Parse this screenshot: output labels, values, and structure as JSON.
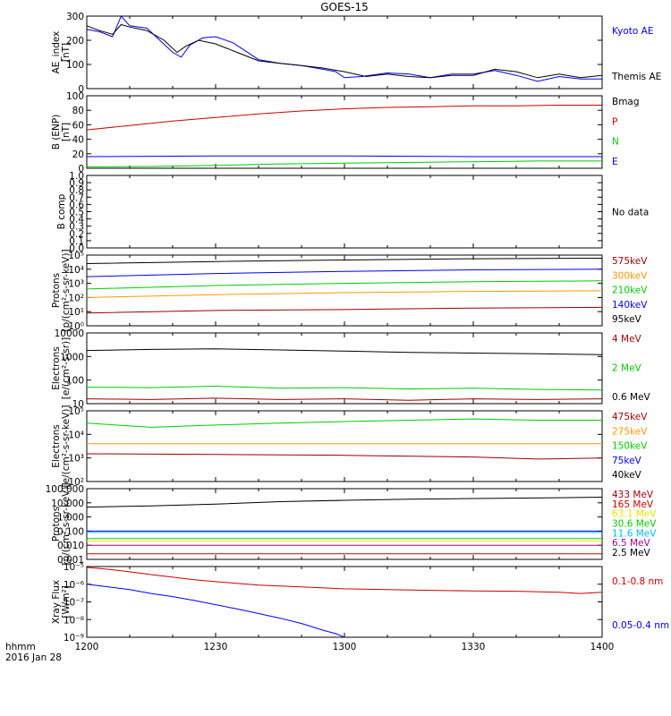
{
  "title": "GOES-15",
  "date_label": "2016 Jan 28",
  "time_axis_label": "hhmm",
  "x_ticks": [
    "1200",
    "1230",
    "1300",
    "1330",
    "1400"
  ],
  "colors": {
    "black": "#000000",
    "red": "#cc0000",
    "blue": "#0000ee",
    "green": "#00cc00",
    "orange": "#ff9900",
    "yellow": "#e6e600",
    "cyan": "#00bbff",
    "darkred": "#990000",
    "purple": "#aa0088"
  },
  "chart_data": [
    {
      "type": "line",
      "ylabel": [
        "AE_index",
        "[nT]"
      ],
      "ylim": [
        0,
        300
      ],
      "y_ticks": [
        "0",
        "100",
        "200",
        "300"
      ],
      "series": [
        {
          "name": "Kyoto AE",
          "color": "blue",
          "x": [
            "1200",
            "1203",
            "1206",
            "1208",
            "1210",
            "1214",
            "1220",
            "1222",
            "1224",
            "1227",
            "1230",
            "1234",
            "1237",
            "1240",
            "1245",
            "1250",
            "1255",
            "1258",
            "1300",
            "1304",
            "1310",
            "1315",
            "1320",
            "1325",
            "1330",
            "1335",
            "1340",
            "1345",
            "1350",
            "1355",
            "1400"
          ],
          "values": [
            245,
            235,
            215,
            300,
            260,
            250,
            150,
            130,
            180,
            210,
            215,
            190,
            155,
            120,
            105,
            95,
            80,
            70,
            45,
            50,
            65,
            60,
            45,
            60,
            60,
            75,
            55,
            30,
            50,
            40,
            40
          ]
        },
        {
          "name": "Themis AE",
          "color": "black",
          "x": [
            "1200",
            "1203",
            "1206",
            "1208",
            "1210",
            "1214",
            "1218",
            "1221",
            "1223",
            "1226",
            "1230",
            "1235",
            "1240",
            "1245",
            "1250",
            "1255",
            "1300",
            "1305",
            "1310",
            "1315",
            "1320",
            "1325",
            "1330",
            "1335",
            "1340",
            "1345",
            "1350",
            "1355",
            "1400"
          ],
          "values": [
            260,
            240,
            225,
            265,
            255,
            240,
            200,
            150,
            175,
            200,
            185,
            150,
            115,
            105,
            95,
            85,
            70,
            50,
            60,
            50,
            45,
            55,
            55,
            80,
            70,
            45,
            60,
            45,
            55
          ]
        }
      ]
    },
    {
      "type": "line",
      "ylabel": [
        "B (ENP)",
        "[nT]"
      ],
      "ylim": [
        0,
        100
      ],
      "y_ticks": [
        "0",
        "20",
        "40",
        "60",
        "80",
        "100"
      ],
      "legend_extra": "Bmag",
      "series": [
        {
          "name": "P",
          "color": "red",
          "x": [
            "1200",
            "1210",
            "1220",
            "1230",
            "1240",
            "1250",
            "1300",
            "1310",
            "1320",
            "1330",
            "1340",
            "1350",
            "1400"
          ],
          "values": [
            53,
            59,
            65,
            70,
            75,
            79,
            82,
            84,
            85,
            86,
            86,
            87,
            87
          ]
        },
        {
          "name": "N",
          "color": "green",
          "x": [
            "1200",
            "1215",
            "1230",
            "1245",
            "1300",
            "1315",
            "1330",
            "1345",
            "1400"
          ],
          "values": [
            2,
            2.5,
            4,
            6,
            7,
            8,
            9,
            10,
            10
          ]
        },
        {
          "name": "E",
          "color": "blue",
          "x": [
            "1200",
            "1230",
            "1300",
            "1330",
            "1400"
          ],
          "values": [
            16,
            17,
            17,
            16,
            16
          ]
        }
      ]
    },
    {
      "type": "line",
      "ylabel": [
        "B comp"
      ],
      "ylim": [
        0,
        1
      ],
      "y_ticks": [
        "0.0",
        "0.1",
        "0.2",
        "0.3",
        "0.4",
        "0.5",
        "0.6",
        "0.7",
        "0.8",
        "0.9",
        "1.0"
      ],
      "legend_extra": "No data",
      "series": []
    },
    {
      "type": "line",
      "log": true,
      "ylabel": [
        "Protons",
        "[p/(cm²-s-sr-keV)]"
      ],
      "ylim": [
        1,
        100000
      ],
      "y_ticks": [
        "10⁰",
        "10¹",
        "10²",
        "10³",
        "10⁴",
        "10⁵"
      ],
      "series": [
        {
          "name": "575keV",
          "color": "darkred",
          "x": [
            "1200",
            "1230",
            "1300",
            "1330",
            "1400"
          ],
          "values": [
            8,
            12,
            14,
            18,
            20
          ]
        },
        {
          "name": "300keV",
          "color": "orange",
          "x": [
            "1200",
            "1230",
            "1300",
            "1330",
            "1400"
          ],
          "values": [
            100,
            160,
            220,
            270,
            300
          ]
        },
        {
          "name": "210keV",
          "color": "green",
          "x": [
            "1200",
            "1230",
            "1300",
            "1330",
            "1400"
          ],
          "values": [
            400,
            700,
            1000,
            1300,
            1500
          ]
        },
        {
          "name": "140keV",
          "color": "blue",
          "x": [
            "1200",
            "1230",
            "1300",
            "1330",
            "1400"
          ],
          "values": [
            3000,
            5000,
            7000,
            9000,
            10000
          ]
        },
        {
          "name": "95keV",
          "color": "black",
          "x": [
            "1200",
            "1230",
            "1300",
            "1330",
            "1400"
          ],
          "values": [
            25000,
            35000,
            45000,
            55000,
            60000
          ]
        }
      ]
    },
    {
      "type": "line",
      "log": true,
      "ylabel": [
        "Electrons",
        "[e/(cm²-s-sr)]"
      ],
      "ylim": [
        10,
        10000
      ],
      "y_ticks": [
        "10",
        "100",
        "1000",
        "10000"
      ],
      "series": [
        {
          "name": "4 MeV",
          "color": "darkred",
          "x": [
            "1200",
            "1215",
            "1230",
            "1245",
            "1300",
            "1315",
            "1330",
            "1345",
            "1400"
          ],
          "values": [
            16,
            15,
            17,
            15,
            16,
            14,
            16,
            15,
            16
          ]
        },
        {
          "name": "2 MeV",
          "color": "green",
          "x": [
            "1200",
            "1215",
            "1230",
            "1245",
            "1300",
            "1315",
            "1330",
            "1345",
            "1400"
          ],
          "values": [
            50,
            48,
            55,
            45,
            48,
            42,
            45,
            40,
            38
          ]
        },
        {
          "name": "0.6 MeV",
          "color": "black",
          "x": [
            "1200",
            "1215",
            "1230",
            "1245",
            "1300",
            "1315",
            "1330",
            "1345",
            "1400"
          ],
          "values": [
            1800,
            2000,
            2100,
            1900,
            1700,
            1500,
            1400,
            1300,
            1200
          ]
        }
      ]
    },
    {
      "type": "line",
      "log": true,
      "ylabel": [
        "Electrons",
        "[e/(cm²-s-sr-keV)]"
      ],
      "ylim": [
        100,
        100000
      ],
      "y_ticks": [
        "10²",
        "10³",
        "10⁴",
        "10⁵"
      ],
      "series": [
        {
          "name": "475keV",
          "color": "darkred",
          "x": [
            "1200",
            "1230",
            "1300",
            "1330",
            "1345",
            "1400"
          ],
          "values": [
            1500,
            1400,
            1300,
            1100,
            900,
            1000
          ]
        },
        {
          "name": "275keV",
          "color": "orange",
          "x": [
            "1200",
            "1230",
            "1300",
            "1330",
            "1400"
          ],
          "values": [
            4000,
            4000,
            4000,
            4000,
            4000
          ]
        },
        {
          "name": "150keV",
          "color": "green",
          "x": [
            "1200",
            "1215",
            "1230",
            "1245",
            "1300",
            "1330",
            "1345",
            "1400"
          ],
          "values": [
            30000,
            20000,
            25000,
            30000,
            35000,
            45000,
            40000,
            40000
          ]
        },
        {
          "name": "75keV",
          "color": "blue",
          "x": [],
          "values": []
        },
        {
          "name": "40keV",
          "color": "black",
          "x": [],
          "values": []
        }
      ]
    },
    {
      "type": "line",
      "log": true,
      "ylabel": [
        "Protons",
        "[p/(cm²-s-sr-keV)]"
      ],
      "ylim": [
        0.001,
        100
      ],
      "y_ticks": [
        "0.001",
        "0.010",
        "0.100",
        "1.000",
        "10.000",
        "100.000"
      ],
      "series": [
        {
          "name": "433 MeV",
          "color": "darkred",
          "x": [],
          "values": []
        },
        {
          "name": "165 MeV",
          "color": "red",
          "x": [
            "1200",
            "1230",
            "1300",
            "1330",
            "1400"
          ],
          "values": [
            0.0025,
            0.0025,
            0.0025,
            0.0025,
            0.0025
          ]
        },
        {
          "name": "63.1 MeV",
          "color": "yellow",
          "x": [
            "1200",
            "1230",
            "1300",
            "1330",
            "1400"
          ],
          "values": [
            0.02,
            0.02,
            0.02,
            0.02,
            0.02
          ]
        },
        {
          "name": "30.6 MeV",
          "color": "green",
          "x": [
            "1200",
            "1230",
            "1300",
            "1330",
            "1400"
          ],
          "values": [
            0.03,
            0.03,
            0.03,
            0.03,
            0.03
          ]
        },
        {
          "name": "11.6 MeV",
          "color": "cyan",
          "x": [
            "1200",
            "1230",
            "1300",
            "1330",
            "1400"
          ],
          "values": [
            0.08,
            0.08,
            0.08,
            0.08,
            0.08
          ]
        },
        {
          "name": "6.5 MeV",
          "color": "purple",
          "x": [
            "1200",
            "1230",
            "1300",
            "1330",
            "1400"
          ],
          "values": [
            0.01,
            0.01,
            0.01,
            0.01,
            0.01
          ]
        },
        {
          "name": "2.5 MeV",
          "color": "black",
          "x": [
            "1200",
            "1215",
            "1230",
            "1245",
            "1300",
            "1315",
            "1330",
            "1345",
            "1400"
          ],
          "values": [
            5,
            6,
            8,
            12,
            15,
            18,
            20,
            22,
            25
          ]
        },
        {
          "name": "",
          "color": "blue",
          "x": [
            "1200",
            "1230",
            "1300",
            "1330",
            "1400"
          ],
          "values": [
            0.1,
            0.1,
            0.1,
            0.1,
            0.1
          ]
        }
      ]
    },
    {
      "type": "line",
      "log": true,
      "ylabel": [
        "Xray Flux",
        "[W/m²]"
      ],
      "ylim": [
        1e-09,
        1e-05
      ],
      "y_ticks": [
        "10⁻⁹",
        "10⁻⁸",
        "10⁻⁷",
        "10⁻⁶",
        "10⁻⁵"
      ],
      "series": [
        {
          "name": "0.1-0.8 nm",
          "color": "red",
          "x": [
            "1200",
            "1205",
            "1210",
            "1215",
            "1220",
            "1225",
            "1230",
            "1240",
            "1250",
            "1300",
            "1310",
            "1320",
            "1330",
            "1340",
            "1350",
            "1355",
            "1400"
          ],
          "values": [
            9e-06,
            7e-06,
            5e-06,
            3.5e-06,
            2.5e-06,
            1.8e-06,
            1.4e-06,
            9e-07,
            7e-07,
            5.5e-07,
            5e-07,
            4.5e-07,
            4.2e-07,
            4e-07,
            3.5e-07,
            3e-07,
            3.5e-07
          ]
        },
        {
          "name": "0.05-0.4 nm",
          "color": "blue",
          "x": [
            "1200",
            "1205",
            "1210",
            "1215",
            "1220",
            "1225",
            "1230",
            "1235",
            "1240",
            "1245",
            "1250",
            "1255",
            "1258",
            "1300"
          ],
          "values": [
            1e-06,
            7e-07,
            5e-07,
            3e-07,
            2e-07,
            1.2e-07,
            7e-08,
            4e-08,
            2.2e-08,
            1.2e-08,
            6e-09,
            2.5e-09,
            1.6e-09,
            1e-09
          ]
        }
      ]
    }
  ]
}
